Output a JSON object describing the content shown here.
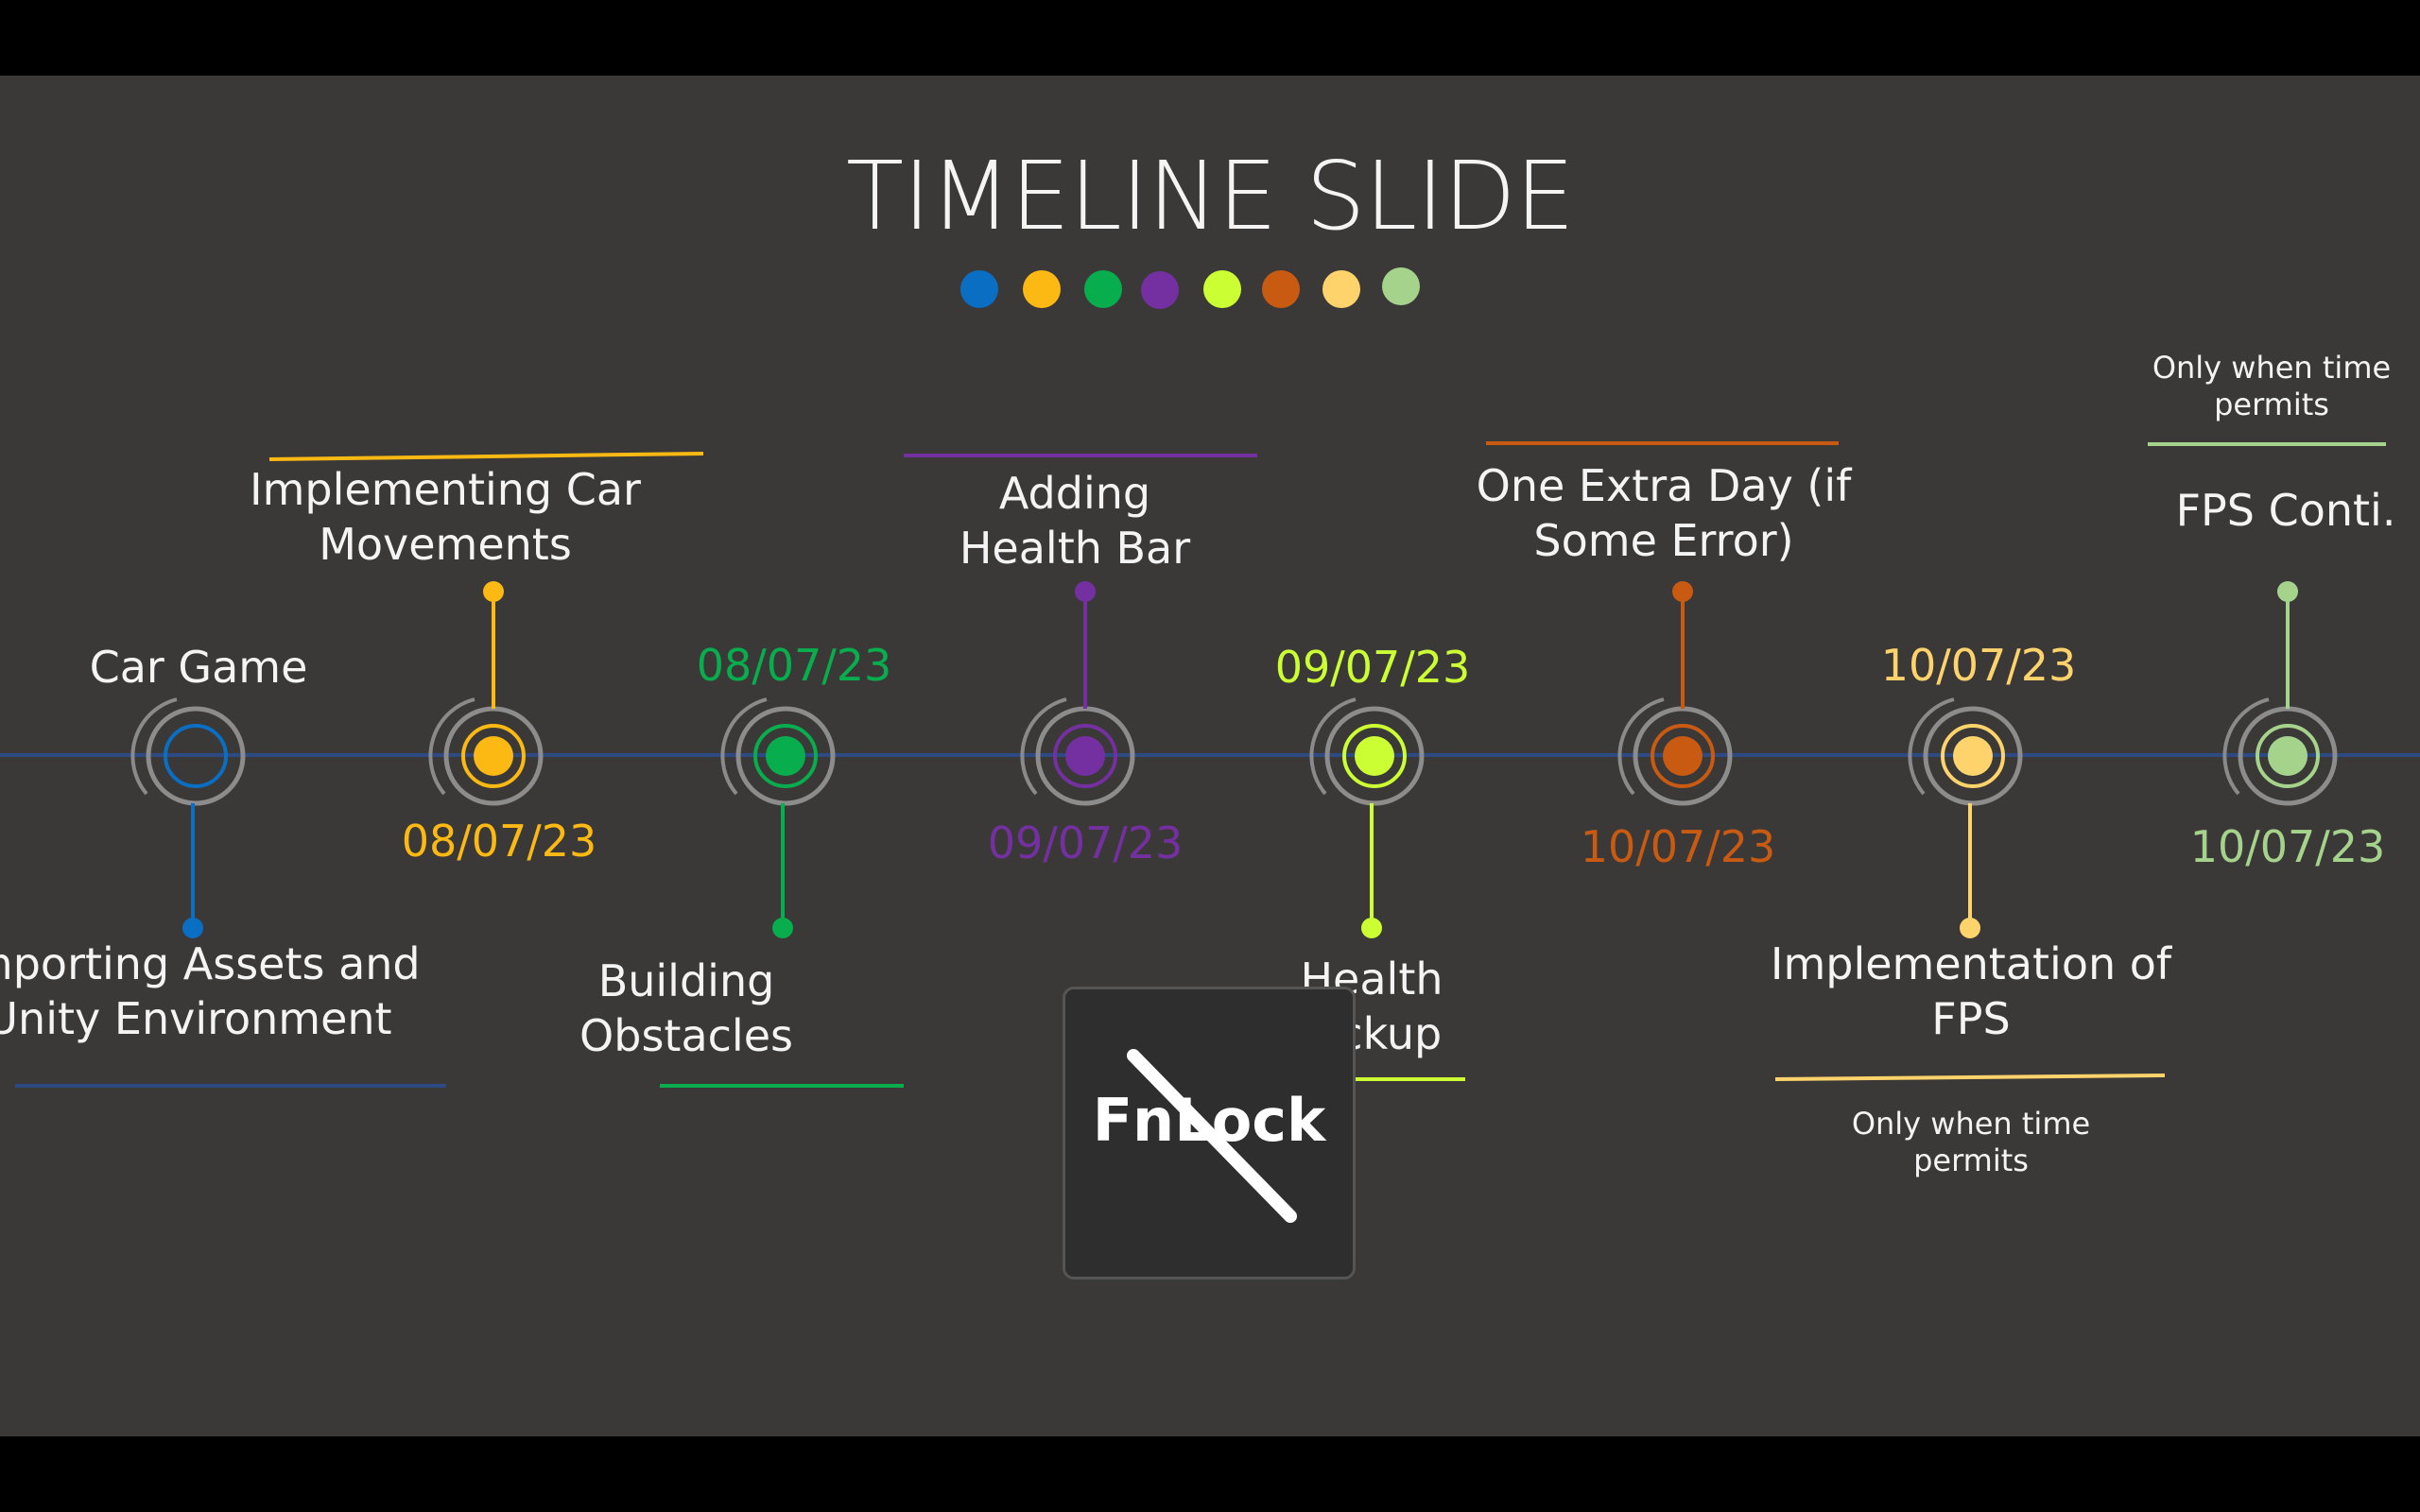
{
  "slide": {
    "title": "TIMELINE SLIDE",
    "palette": [
      "#0a6fc2",
      "#fcb813",
      "#08ad4d",
      "#7430a1",
      "#ccff33",
      "#c85a12",
      "#ffd36b",
      "#a6d38c"
    ],
    "axis_color": "#2d4a82",
    "milestones": [
      {
        "label": "Car Game",
        "caption": "Importing Assets and Unity Environment",
        "date": "",
        "color": "#0a6fc2",
        "side": "down",
        "rule_color": "#2d4a82"
      },
      {
        "label": "Implementing Car Movements",
        "date": "08/07/23",
        "color": "#fcb813",
        "side": "up"
      },
      {
        "label": "Building Obstacles",
        "date": "08/07/23",
        "color": "#08ad4d",
        "side": "down"
      },
      {
        "label": "Adding Health Bar",
        "date": "09/07/23",
        "color": "#7430a1",
        "side": "up"
      },
      {
        "label": "Health Pickup",
        "date": "09/07/23",
        "color": "#ccff33",
        "side": "down"
      },
      {
        "label": "One Extra Day (if Some Error)",
        "date": "10/07/23",
        "color": "#c85a12",
        "side": "up"
      },
      {
        "label": "Implementation of FPS",
        "date": "10/07/23",
        "color": "#ffd36b",
        "side": "down",
        "note": "Only when time permits"
      },
      {
        "label": "FPS Conti.",
        "date": "10/07/23",
        "color": "#a6d38c",
        "side": "up",
        "note": "Only when time permits"
      }
    ]
  },
  "overlay": {
    "fnlock_text": "FnLock",
    "icon": "fnlock-off-icon"
  }
}
